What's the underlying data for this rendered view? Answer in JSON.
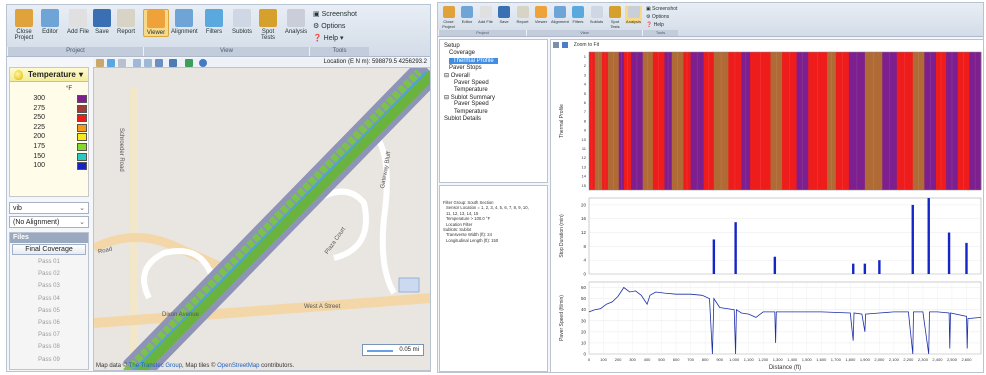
{
  "colors": {
    "ribbon_top": "#e9eef5",
    "selection": "#3f8ee4",
    "thermal_red": "#ef1c1c",
    "thermal_purple": "#7d1f8f",
    "thermal_brown": "#b06a35",
    "bar_blue": "#1426c8",
    "line_blue": "#1d2fa8"
  },
  "left_window": {
    "ribbon": {
      "buttons": [
        {
          "label": "Close Project",
          "icon": "close-project-icon",
          "color": "#e0a23a"
        },
        {
          "label": "Editor",
          "icon": "editor-icon",
          "color": "#6fa5d6"
        },
        {
          "label": "Add File",
          "icon": "add-file-icon",
          "color": "#e0e0e0"
        },
        {
          "label": "Save",
          "icon": "save-icon",
          "color": "#3a6fb3"
        },
        {
          "label": "Report",
          "icon": "report-icon",
          "color": "#d7d4c6"
        },
        {
          "label": "Viewer",
          "icon": "viewer-icon",
          "color": "#f0a23a",
          "active": true
        },
        {
          "label": "Alignment",
          "icon": "alignment-icon",
          "color": "#6fa5d6"
        },
        {
          "label": "Filters",
          "icon": "filters-icon",
          "color": "#59a9df"
        },
        {
          "label": "Sublots",
          "icon": "sublots-icon",
          "color": "#cfd7e4"
        },
        {
          "label": "Spot Tests",
          "icon": "spot-tests-icon",
          "color": "#d5a12c"
        },
        {
          "label": "Analysis",
          "icon": "analysis-icon",
          "color": "#c9ced9"
        }
      ],
      "side_options": [
        "Screenshot",
        "Options",
        "Help"
      ],
      "groups": [
        "Project",
        "View",
        "Tools"
      ]
    },
    "legend": {
      "title": "Temperature",
      "unit": "°F",
      "rows": [
        {
          "label": "300",
          "color": "#7d1f8f"
        },
        {
          "label": "275",
          "color": "#a23a3a"
        },
        {
          "label": "250",
          "color": "#ef1c1c"
        },
        {
          "label": "225",
          "color": "#f59a19"
        },
        {
          "label": "200",
          "color": "#f5ea1a"
        },
        {
          "label": "175",
          "color": "#86d92a"
        },
        {
          "label": "150",
          "color": "#29c9c4"
        },
        {
          "label": "100",
          "color": "#1522c7"
        }
      ]
    },
    "combos": {
      "file": "vib",
      "alignment": "(No Alignment)"
    },
    "files": {
      "header": "Files",
      "final": "Final Coverage",
      "passes": [
        "Pass 01",
        "Pass 02",
        "Pass 03",
        "Pass 04",
        "Pass 05",
        "Pass 06",
        "Pass 07",
        "Pass 08",
        "Pass 09"
      ]
    },
    "map": {
      "location": "Location (E N m): 598879.5 4256293.2",
      "roads": [
        "Schroeder Road",
        "Dixon Avenue",
        "West A Street",
        "Gateway Bluff",
        "Plaza Court",
        "Road"
      ],
      "scale": "0.05 mi",
      "attribution_prefix": "Map data ©",
      "attribution_link1": "The Transtec Group",
      "attribution_mid": ", Map tiles ©",
      "attribution_link2": "OpenStreetMap",
      "attribution_suffix": "contributors."
    }
  },
  "right_window": {
    "ribbon": {
      "buttons": [
        "Close Project",
        "Editor",
        "Add File",
        "Save",
        "Report",
        "Viewer",
        "Alignment",
        "Filters",
        "Sublots",
        "Spot Tests",
        "Analysis"
      ],
      "side_options": [
        "Screenshot",
        "Options",
        "Help"
      ],
      "groups": [
        "Project",
        "View",
        "Tools"
      ]
    },
    "tree": [
      {
        "label": "Setup",
        "level": 0
      },
      {
        "label": "Coverage",
        "level": 1
      },
      {
        "label": "Thermal Profile",
        "level": 1,
        "selected": true
      },
      {
        "label": "Paver Stops",
        "level": 1
      },
      {
        "label": "⊟ Overall",
        "level": 0
      },
      {
        "label": "Paver Speed",
        "level": 2
      },
      {
        "label": "Temperature",
        "level": 2
      },
      {
        "label": "⊟ Sublot Summary",
        "level": 0
      },
      {
        "label": "Paver Speed",
        "level": 2
      },
      {
        "label": "Temperature",
        "level": 2
      },
      {
        "label": "Sublot Details",
        "level": 0
      }
    ],
    "info_lines": [
      "Filter Group: South Section",
      "Sensor Location = 1, 2, 3, 4, 5, 6, 7, 8, 9, 10,",
      "11, 12, 13, 14, 15",
      "Temperature > 100.0 °F",
      "Location Filter",
      "Sublots: Sublot",
      "Transverse Width (ft): 24",
      "Longitudinal Length (ft): 150"
    ],
    "toolbar": {
      "zoom": "Zoom to Fit"
    }
  },
  "chart_data": [
    {
      "type": "heatmap",
      "ylabel": "Thermal Profile",
      "rows": [
        "1",
        "2",
        "3",
        "4",
        "5",
        "6",
        "7",
        "8",
        "9",
        "10",
        "11",
        "12",
        "13",
        "14",
        "15"
      ],
      "legend_colors": [
        "#ef1c1c",
        "#7d1f8f",
        "#b06a35"
      ],
      "bands": [
        {
          "x0": 0,
          "x1": 40,
          "c": "#ef1c1c"
        },
        {
          "x0": 40,
          "x1": 90,
          "c": "#b06a35"
        },
        {
          "x0": 90,
          "x1": 130,
          "c": "#ef1c1c"
        },
        {
          "x0": 130,
          "x1": 205,
          "c": "#b06a35"
        },
        {
          "x0": 205,
          "x1": 240,
          "c": "#7d1f8f"
        },
        {
          "x0": 240,
          "x1": 290,
          "c": "#ef1c1c"
        },
        {
          "x0": 290,
          "x1": 370,
          "c": "#7d1f8f"
        },
        {
          "x0": 370,
          "x1": 440,
          "c": "#b06a35"
        },
        {
          "x0": 440,
          "x1": 520,
          "c": "#ef1c1c"
        },
        {
          "x0": 520,
          "x1": 570,
          "c": "#7d1f8f"
        },
        {
          "x0": 570,
          "x1": 650,
          "c": "#b06a35"
        },
        {
          "x0": 650,
          "x1": 700,
          "c": "#ef1c1c"
        },
        {
          "x0": 700,
          "x1": 790,
          "c": "#7d1f8f"
        },
        {
          "x0": 790,
          "x1": 860,
          "c": "#ef1c1c"
        },
        {
          "x0": 860,
          "x1": 960,
          "c": "#b06a35"
        },
        {
          "x0": 960,
          "x1": 1050,
          "c": "#ef1c1c"
        },
        {
          "x0": 1050,
          "x1": 1110,
          "c": "#7d1f8f"
        },
        {
          "x0": 1110,
          "x1": 1250,
          "c": "#ef1c1c"
        },
        {
          "x0": 1250,
          "x1": 1330,
          "c": "#b06a35"
        },
        {
          "x0": 1330,
          "x1": 1430,
          "c": "#ef1c1c"
        },
        {
          "x0": 1430,
          "x1": 1510,
          "c": "#7d1f8f"
        },
        {
          "x0": 1510,
          "x1": 1640,
          "c": "#ef1c1c"
        },
        {
          "x0": 1640,
          "x1": 1700,
          "c": "#b06a35"
        },
        {
          "x0": 1700,
          "x1": 1790,
          "c": "#ef1c1c"
        },
        {
          "x0": 1790,
          "x1": 1900,
          "c": "#7d1f8f"
        },
        {
          "x0": 1900,
          "x1": 2020,
          "c": "#b06a35"
        },
        {
          "x0": 2020,
          "x1": 2120,
          "c": "#7d1f8f"
        },
        {
          "x0": 2120,
          "x1": 2230,
          "c": "#ef1c1c"
        },
        {
          "x0": 2230,
          "x1": 2310,
          "c": "#b06a35"
        },
        {
          "x0": 2310,
          "x1": 2390,
          "c": "#7d1f8f"
        },
        {
          "x0": 2390,
          "x1": 2460,
          "c": "#ef1c1c"
        },
        {
          "x0": 2460,
          "x1": 2540,
          "c": "#7d1f8f"
        },
        {
          "x0": 2540,
          "x1": 2620,
          "c": "#ef1c1c"
        },
        {
          "x0": 2620,
          "x1": 2700,
          "c": "#7d1f8f"
        }
      ]
    },
    {
      "type": "bar",
      "ylabel": "Stop Duration (min)",
      "ylim": [
        0,
        22
      ],
      "yticks": [
        0,
        4,
        8,
        12,
        16,
        20
      ],
      "x": [
        860,
        1010,
        1280,
        1820,
        1900,
        2000,
        2230,
        2340,
        2480,
        2600
      ],
      "values": [
        10,
        15,
        5,
        3,
        3,
        4,
        20,
        22,
        12,
        9
      ]
    },
    {
      "type": "line",
      "ylabel": "Paver Speed (ft/min)",
      "xlabel": "Distance (ft)",
      "xlim": [
        0,
        2700
      ],
      "ylim": [
        0,
        65
      ],
      "yticks": [
        0,
        10,
        20,
        30,
        40,
        50,
        60
      ],
      "xticks": [
        0,
        100,
        200,
        300,
        400,
        500,
        600,
        700,
        800,
        900,
        1000,
        1100,
        1200,
        1300,
        1400,
        1500,
        1600,
        1700,
        1800,
        1900,
        2000,
        2100,
        2200,
        2300,
        2400,
        2500,
        2600
      ],
      "xtick_labels": [
        "0",
        "100",
        "200",
        "300",
        "400",
        "500",
        "600",
        "700",
        "800",
        "900",
        "1,000",
        "1,100",
        "1,200",
        "1,300",
        "1,400",
        "1,500",
        "1,600",
        "1,700",
        "1,800",
        "1,900",
        "2,000",
        "2,100",
        "2,200",
        "2,300",
        "2,400",
        "2,500",
        "2,600"
      ],
      "points": [
        [
          0,
          38
        ],
        [
          40,
          40
        ],
        [
          80,
          41
        ],
        [
          120,
          45
        ],
        [
          160,
          47
        ],
        [
          200,
          52
        ],
        [
          240,
          60
        ],
        [
          280,
          56
        ],
        [
          320,
          57
        ],
        [
          360,
          53
        ],
        [
          400,
          45
        ],
        [
          420,
          53
        ],
        [
          460,
          56
        ],
        [
          520,
          55
        ],
        [
          600,
          54
        ],
        [
          700,
          54
        ],
        [
          780,
          53
        ],
        [
          830,
          50
        ],
        [
          850,
          0
        ],
        [
          860,
          50
        ],
        [
          900,
          42
        ],
        [
          950,
          41
        ],
        [
          1000,
          40
        ],
        [
          1010,
          0
        ],
        [
          1015,
          40
        ],
        [
          1050,
          37
        ],
        [
          1100,
          36
        ],
        [
          1150,
          33
        ],
        [
          1200,
          38
        ],
        [
          1280,
          38
        ],
        [
          1285,
          10
        ],
        [
          1290,
          38
        ],
        [
          1400,
          38
        ],
        [
          1600,
          38
        ],
        [
          1800,
          37
        ],
        [
          1820,
          12
        ],
        [
          1825,
          37
        ],
        [
          1880,
          36
        ],
        [
          1900,
          20
        ],
        [
          1905,
          36
        ],
        [
          2000,
          37
        ],
        [
          2100,
          38
        ],
        [
          2200,
          38
        ],
        [
          2230,
          0
        ],
        [
          2235,
          38
        ],
        [
          2300,
          38
        ],
        [
          2340,
          0
        ],
        [
          2345,
          38
        ],
        [
          2400,
          38
        ],
        [
          2480,
          37
        ],
        [
          2485,
          5
        ],
        [
          2490,
          37
        ],
        [
          2600,
          34
        ],
        [
          2605,
          5
        ],
        [
          2610,
          32
        ],
        [
          2700,
          33
        ]
      ]
    }
  ]
}
